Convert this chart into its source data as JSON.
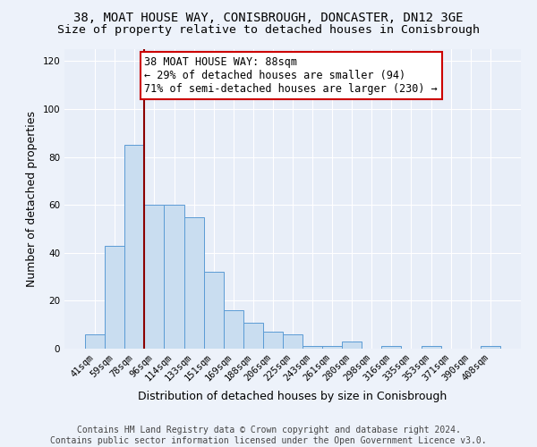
{
  "title_line1": "38, MOAT HOUSE WAY, CONISBROUGH, DONCASTER, DN12 3GE",
  "title_line2": "Size of property relative to detached houses in Conisbrough",
  "xlabel": "Distribution of detached houses by size in Conisbrough",
  "ylabel": "Number of detached properties",
  "categories": [
    "41sqm",
    "59sqm",
    "78sqm",
    "96sqm",
    "114sqm",
    "133sqm",
    "151sqm",
    "169sqm",
    "188sqm",
    "206sqm",
    "225sqm",
    "243sqm",
    "261sqm",
    "280sqm",
    "298sqm",
    "316sqm",
    "335sqm",
    "353sqm",
    "371sqm",
    "390sqm",
    "408sqm"
  ],
  "values": [
    6,
    43,
    85,
    60,
    60,
    55,
    32,
    16,
    11,
    7,
    6,
    1,
    1,
    3,
    0,
    1,
    0,
    1,
    0,
    0,
    1
  ],
  "bar_color": "#c9ddf0",
  "bar_edge_color": "#5b9bd5",
  "vline_x_idx": 2.5,
  "vline_color": "#8b0000",
  "annotation_text": "38 MOAT HOUSE WAY: 88sqm\n← 29% of detached houses are smaller (94)\n71% of semi-detached houses are larger (230) →",
  "annotation_box_facecolor": "#ffffff",
  "annotation_box_edgecolor": "#cc0000",
  "ylim": [
    0,
    125
  ],
  "yticks": [
    0,
    20,
    40,
    60,
    80,
    100,
    120
  ],
  "bg_color": "#e8eef8",
  "fig_bg_color": "#edf2fa",
  "footer_text": "Contains HM Land Registry data © Crown copyright and database right 2024.\nContains public sector information licensed under the Open Government Licence v3.0.",
  "title_fontsize": 10,
  "subtitle_fontsize": 9.5,
  "annotation_fontsize": 8.5,
  "footer_fontsize": 7,
  "ylabel_fontsize": 9,
  "xlabel_fontsize": 9,
  "tick_fontsize": 7.5
}
